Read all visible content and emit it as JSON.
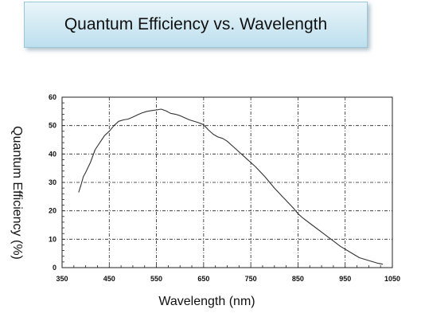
{
  "title": "Quantum Efficiency vs. Wavelength",
  "chart_data": {
    "type": "line",
    "xlabel": "Wavelength (nm)",
    "ylabel": "Quantum Efficiency (%)",
    "xlim": [
      350,
      1050
    ],
    "ylim": [
      0,
      60
    ],
    "xticks": [
      "350",
      "450",
      "550",
      "650",
      "750",
      "850",
      "950",
      "1050"
    ],
    "yticks": [
      "0",
      "10",
      "20",
      "30",
      "40",
      "50",
      "60"
    ],
    "grid": true,
    "legend": "none",
    "series_color": "#333333",
    "series": [
      {
        "x": [
          385,
          390,
          395,
          400,
          410,
          420,
          430,
          440,
          450,
          460,
          470,
          480,
          490,
          500,
          510,
          520,
          530,
          540,
          550,
          560,
          570,
          580,
          590,
          600,
          620,
          640,
          650,
          660,
          670,
          680,
          690,
          700,
          720,
          740,
          760,
          780,
          800,
          820,
          840,
          850,
          860,
          880,
          900,
          920,
          940,
          960,
          980,
          1000,
          1020,
          1030
        ],
        "y": [
          26.5,
          29,
          32,
          33.5,
          37,
          41.5,
          44,
          46.5,
          48,
          50,
          51.5,
          52,
          52.3,
          53,
          53.8,
          54.5,
          55,
          55.3,
          55.5,
          55.8,
          55.2,
          54.3,
          54,
          53.5,
          52,
          51,
          50.3,
          48.5,
          47,
          46,
          45.5,
          44.5,
          41.5,
          38.5,
          35.5,
          32,
          28,
          24.5,
          21,
          19,
          17.5,
          15,
          12.5,
          10,
          7.5,
          5.5,
          3.5,
          2.5,
          1.5,
          1.2
        ]
      }
    ]
  }
}
